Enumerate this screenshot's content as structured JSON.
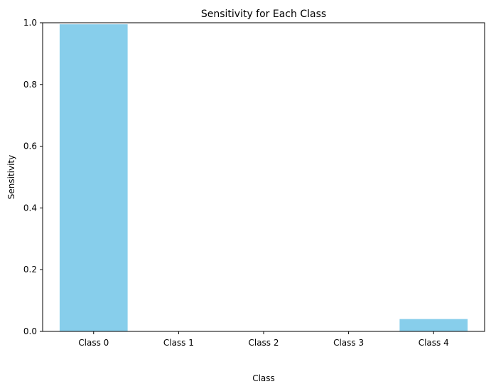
{
  "chart_data": {
    "type": "bar",
    "title": "Sensitivity for Each Class",
    "xlabel": "Class",
    "ylabel": "Sensitivity",
    "categories": [
      "Class 0",
      "Class 1",
      "Class 2",
      "Class 3",
      "Class 4"
    ],
    "values": [
      0.995,
      0.0,
      0.0,
      0.0,
      0.04
    ],
    "ylim": [
      0,
      1
    ],
    "yticks": [
      0.0,
      0.2,
      0.4,
      0.6,
      0.8,
      1.0
    ],
    "ytick_labels": [
      "0.0",
      "0.2",
      "0.4",
      "0.6",
      "0.8",
      "1.0"
    ],
    "bar_color": "#87ceeb",
    "grid": false,
    "legend": "none"
  }
}
